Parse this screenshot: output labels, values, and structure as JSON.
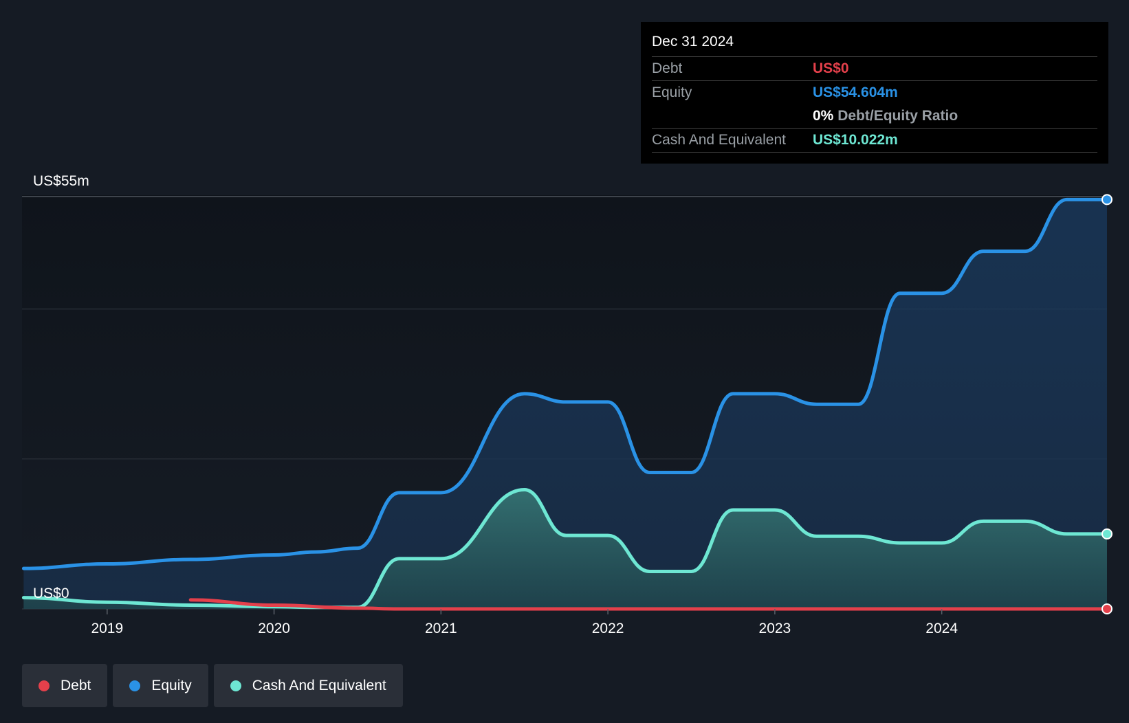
{
  "colors": {
    "debt": "#e4404b",
    "equity": "#2a92e6",
    "cash": "#6ee7d3",
    "background": "#151b24"
  },
  "tooltip": {
    "date": "Dec 31 2024",
    "debt_label": "Debt",
    "debt_value": "US$0",
    "equity_label": "Equity",
    "equity_value": "US$54.604m",
    "ratio_value": "0%",
    "ratio_label": "Debt/Equity Ratio",
    "cash_label": "Cash And Equivalent",
    "cash_value": "US$10.022m"
  },
  "legend": {
    "debt": "Debt",
    "equity": "Equity",
    "cash": "Cash And Equivalent"
  },
  "chart_data": {
    "type": "area",
    "title": "",
    "xlabel": "",
    "ylabel": "",
    "y_top_label": "US$55m",
    "y_bottom_label": "US$0",
    "ylim": [
      0,
      55
    ],
    "xlim": [
      2018.49,
      2024.99
    ],
    "x_ticks": [
      "2019",
      "2020",
      "2021",
      "2022",
      "2023",
      "2024"
    ],
    "grid": true,
    "legend_position": "bottom-left",
    "series": [
      {
        "name": "Debt",
        "x": [
          2019.5,
          2020.0,
          2020.5,
          2020.75,
          2021.0,
          2021.5,
          2022.0,
          2022.5,
          2023.0,
          2023.5,
          2024.0,
          2024.5,
          2024.99
        ],
        "values": [
          1.2,
          0.5,
          0.1,
          0,
          0,
          0,
          0,
          0,
          0,
          0,
          0,
          0,
          0
        ]
      },
      {
        "name": "Equity",
        "x": [
          2018.5,
          2019.0,
          2019.5,
          2020.0,
          2020.25,
          2020.5,
          2020.75,
          2021.0,
          2021.5,
          2021.75,
          2022.0,
          2022.25,
          2022.5,
          2022.75,
          2023.0,
          2023.25,
          2023.5,
          2023.75,
          2024.0,
          2024.25,
          2024.5,
          2024.75,
          2024.99
        ],
        "values": [
          5.4,
          6.0,
          6.6,
          7.2,
          7.6,
          8.1,
          15.5,
          15.5,
          28.7,
          27.6,
          27.6,
          18.2,
          18.2,
          28.7,
          28.7,
          27.3,
          27.3,
          42.1,
          42.1,
          47.7,
          47.7,
          54.6,
          54.6
        ]
      },
      {
        "name": "Cash And Equivalent",
        "x": [
          2018.5,
          2019.0,
          2019.5,
          2020.0,
          2020.25,
          2020.5,
          2020.75,
          2021.0,
          2021.5,
          2021.75,
          2022.0,
          2022.25,
          2022.5,
          2022.75,
          2023.0,
          2023.25,
          2023.5,
          2023.75,
          2024.0,
          2024.25,
          2024.5,
          2024.75,
          2024.99
        ],
        "values": [
          1.5,
          0.9,
          0.5,
          0.3,
          0.2,
          0.2,
          6.7,
          6.7,
          15.9,
          9.8,
          9.8,
          5.0,
          5.0,
          13.2,
          13.2,
          9.7,
          9.7,
          8.8,
          8.8,
          11.7,
          11.7,
          10.0,
          10.0
        ]
      }
    ]
  }
}
